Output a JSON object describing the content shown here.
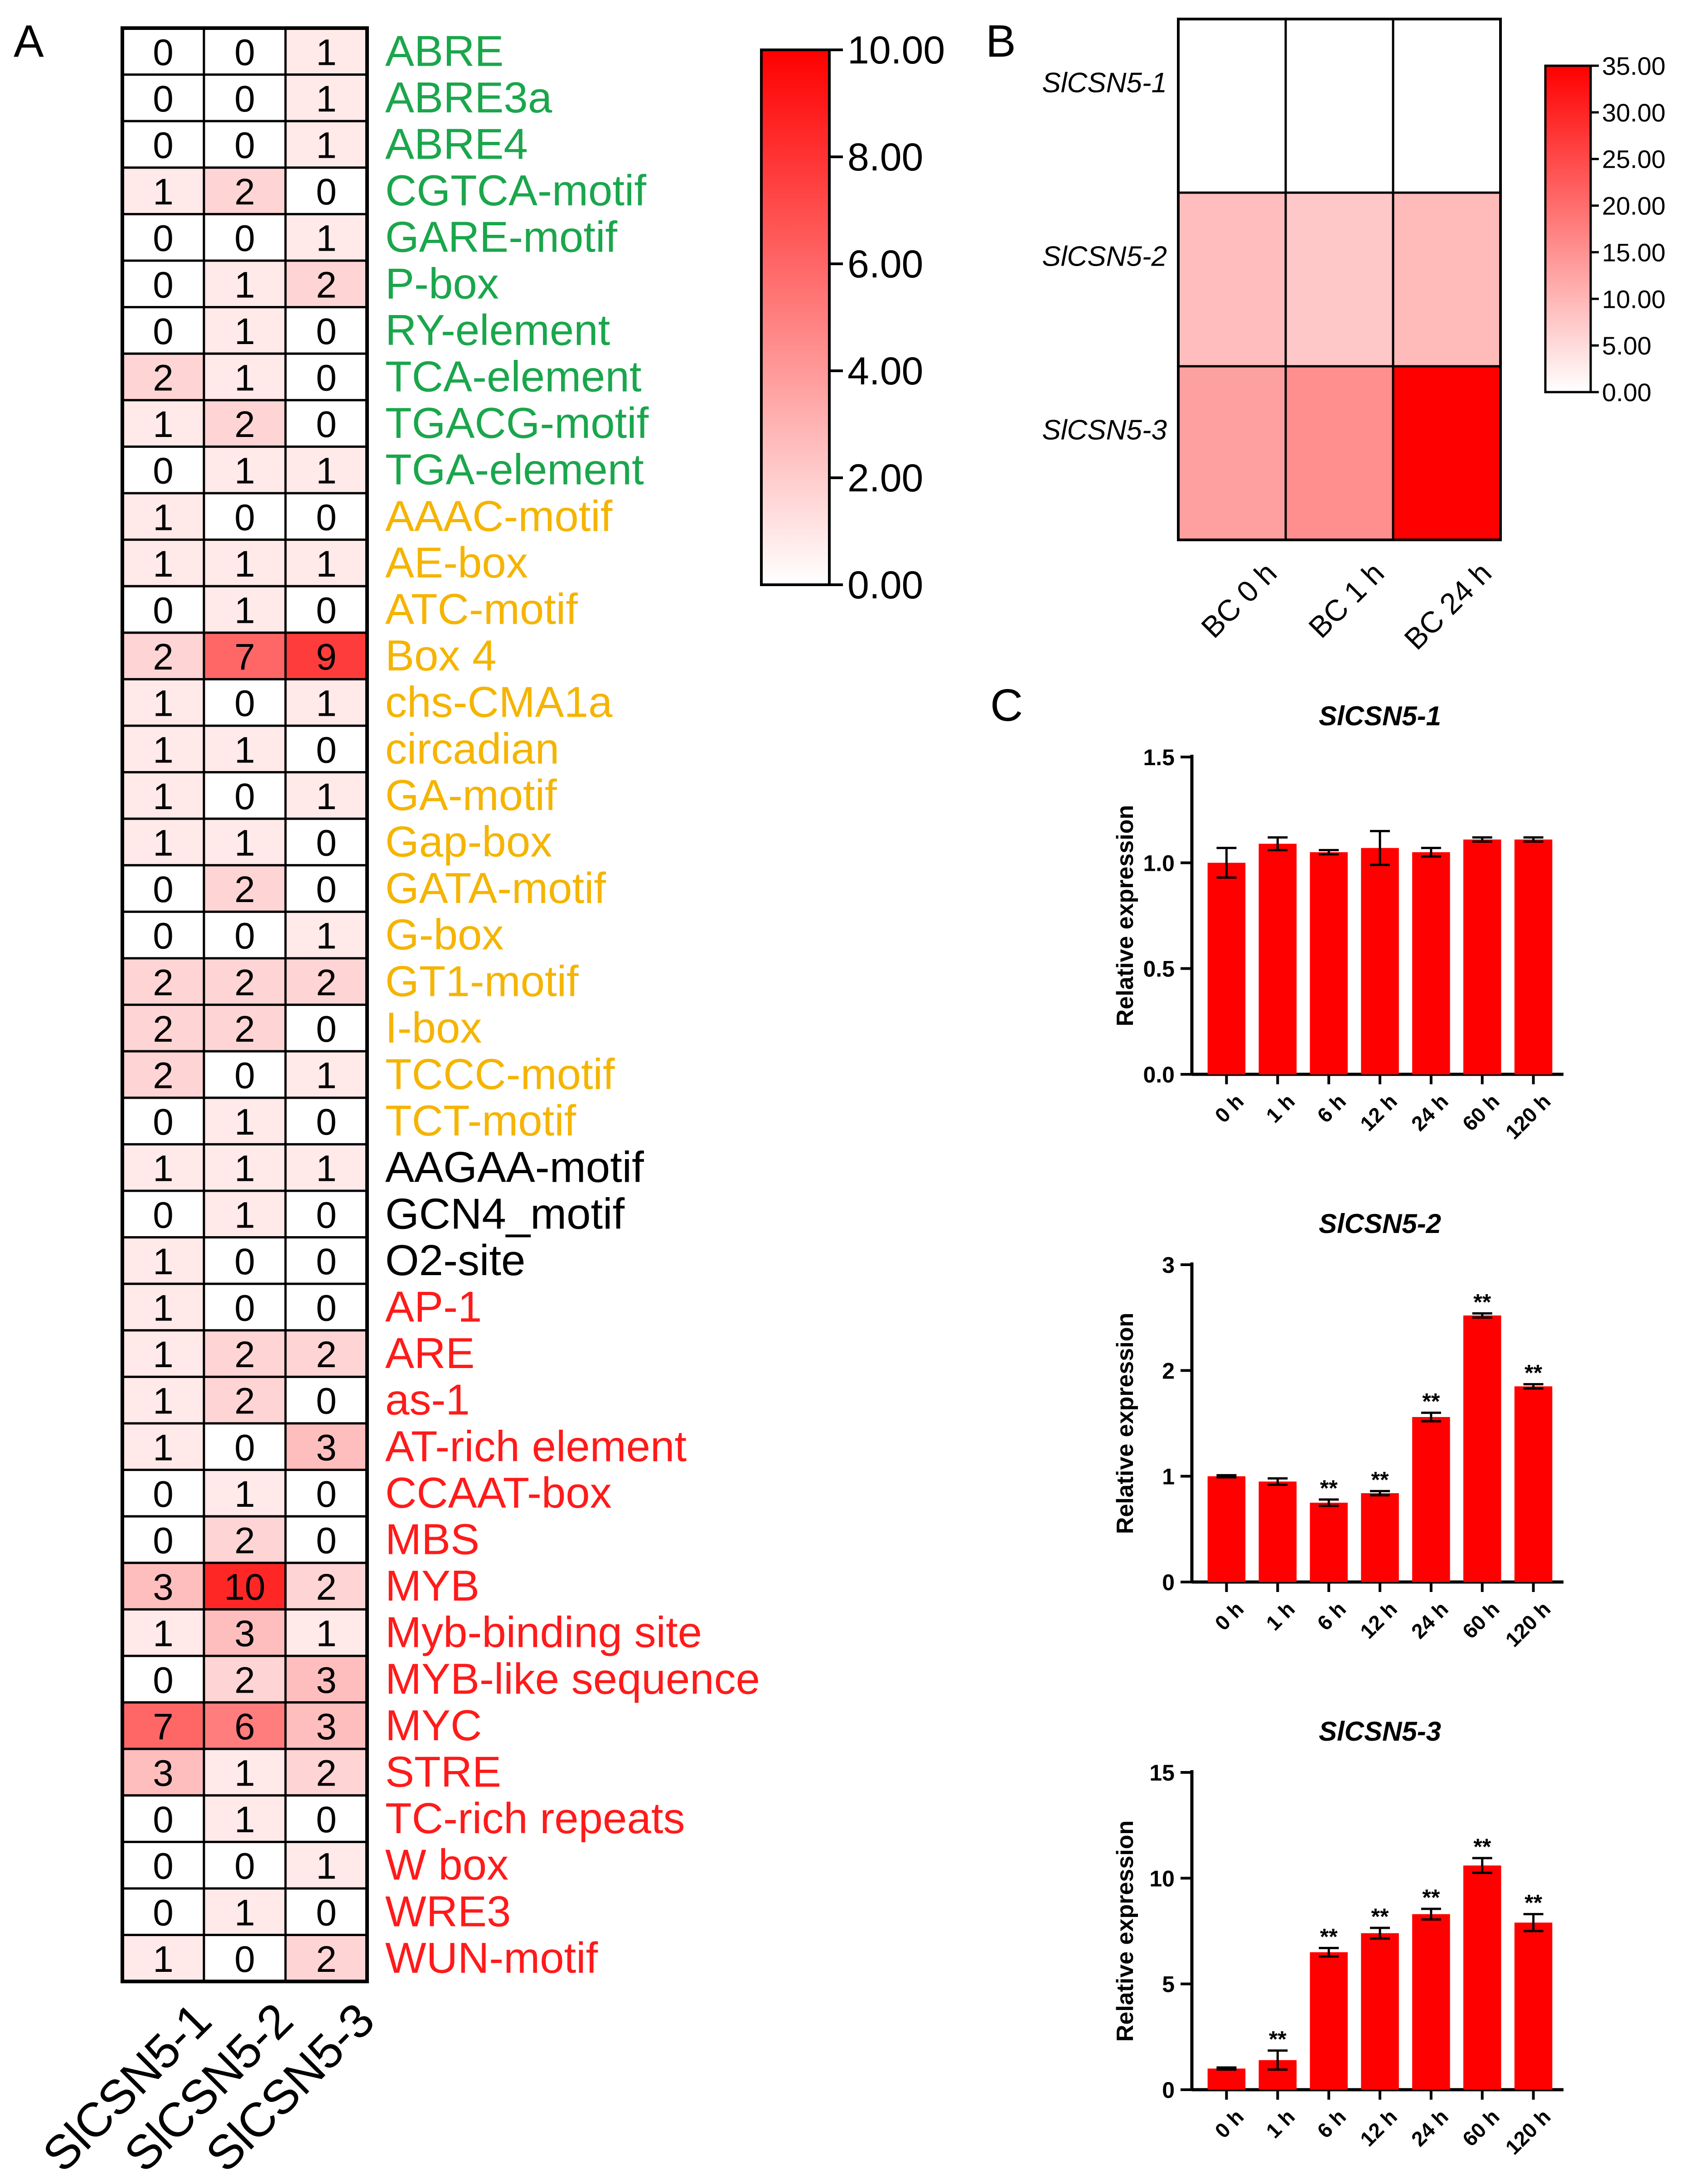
{
  "panels": {
    "a": "A",
    "b": "B",
    "c": "C"
  },
  "chart_data": [
    {
      "type": "heatmap",
      "panel": "A",
      "columns": [
        "SlCSN5-1",
        "SlCSN5-2",
        "SlCSN5-3"
      ],
      "rows": [
        {
          "label": "ABRE",
          "group": "hormone",
          "values": [
            0,
            0,
            1
          ]
        },
        {
          "label": "ABRE3a",
          "group": "hormone",
          "values": [
            0,
            0,
            1
          ]
        },
        {
          "label": "ABRE4",
          "group": "hormone",
          "values": [
            0,
            0,
            1
          ]
        },
        {
          "label": "CGTCA-motif",
          "group": "hormone",
          "values": [
            1,
            2,
            0
          ]
        },
        {
          "label": "GARE-motif",
          "group": "hormone",
          "values": [
            0,
            0,
            1
          ]
        },
        {
          "label": "P-box",
          "group": "hormone",
          "values": [
            0,
            1,
            2
          ]
        },
        {
          "label": "RY-element",
          "group": "hormone",
          "values": [
            0,
            1,
            0
          ]
        },
        {
          "label": "TCA-element",
          "group": "hormone",
          "values": [
            2,
            1,
            0
          ]
        },
        {
          "label": "TGACG-motif",
          "group": "hormone",
          "values": [
            1,
            2,
            0
          ]
        },
        {
          "label": "TGA-element",
          "group": "hormone",
          "values": [
            0,
            1,
            1
          ]
        },
        {
          "label": "AAAC-motif",
          "group": "light",
          "values": [
            1,
            0,
            0
          ]
        },
        {
          "label": "AE-box",
          "group": "light",
          "values": [
            1,
            1,
            1
          ]
        },
        {
          "label": "ATC-motif",
          "group": "light",
          "values": [
            0,
            1,
            0
          ]
        },
        {
          "label": "Box 4",
          "group": "light",
          "values": [
            2,
            7,
            9
          ]
        },
        {
          "label": "chs-CMA1a",
          "group": "light",
          "values": [
            1,
            0,
            1
          ]
        },
        {
          "label": "circadian",
          "group": "light",
          "values": [
            1,
            1,
            0
          ]
        },
        {
          "label": "GA-motif",
          "group": "light",
          "values": [
            1,
            0,
            1
          ]
        },
        {
          "label": "Gap-box",
          "group": "light",
          "values": [
            1,
            1,
            0
          ]
        },
        {
          "label": "GATA-motif",
          "group": "light",
          "values": [
            0,
            2,
            0
          ]
        },
        {
          "label": "G-box",
          "group": "light",
          "values": [
            0,
            0,
            1
          ]
        },
        {
          "label": "GT1-motif",
          "group": "light",
          "values": [
            2,
            2,
            2
          ]
        },
        {
          "label": "I-box",
          "group": "light",
          "values": [
            2,
            2,
            0
          ]
        },
        {
          "label": "TCCC-motif",
          "group": "light",
          "values": [
            2,
            0,
            1
          ]
        },
        {
          "label": "TCT-motif",
          "group": "light",
          "values": [
            0,
            1,
            0
          ]
        },
        {
          "label": "AAGAA-motif",
          "group": "other",
          "values": [
            1,
            1,
            1
          ]
        },
        {
          "label": "GCN4_motif",
          "group": "other",
          "values": [
            0,
            1,
            0
          ]
        },
        {
          "label": "O2-site",
          "group": "other",
          "values": [
            1,
            0,
            0
          ]
        },
        {
          "label": "AP-1",
          "group": "stress",
          "values": [
            1,
            0,
            0
          ]
        },
        {
          "label": "ARE",
          "group": "stress",
          "values": [
            1,
            2,
            2
          ]
        },
        {
          "label": "as-1",
          "group": "stress",
          "values": [
            1,
            2,
            0
          ]
        },
        {
          "label": "AT-rich element",
          "group": "stress",
          "values": [
            1,
            0,
            3
          ]
        },
        {
          "label": "CCAAT-box",
          "group": "stress",
          "values": [
            0,
            1,
            0
          ]
        },
        {
          "label": "MBS",
          "group": "stress",
          "values": [
            0,
            2,
            0
          ]
        },
        {
          "label": "MYB",
          "group": "stress",
          "values": [
            3,
            10,
            2
          ]
        },
        {
          "label": "Myb-binding site",
          "group": "stress",
          "values": [
            1,
            3,
            1
          ]
        },
        {
          "label": "MYB-like sequence",
          "group": "stress",
          "values": [
            0,
            2,
            3
          ]
        },
        {
          "label": "MYC",
          "group": "stress",
          "values": [
            7,
            6,
            3
          ]
        },
        {
          "label": "STRE",
          "group": "stress",
          "values": [
            3,
            1,
            2
          ]
        },
        {
          "label": "TC-rich repeats",
          "group": "stress",
          "values": [
            0,
            1,
            0
          ]
        },
        {
          "label": "W box",
          "group": "stress",
          "values": [
            0,
            0,
            1
          ]
        },
        {
          "label": "WRE3",
          "group": "stress",
          "values": [
            0,
            1,
            0
          ]
        },
        {
          "label": "WUN-motif",
          "group": "stress",
          "values": [
            1,
            0,
            2
          ]
        }
      ],
      "group_colors": {
        "hormone": "#1aa64b",
        "light": "#f5b400",
        "other": "#000000",
        "stress": "#ff1a1a"
      },
      "colorbar": {
        "min": 0,
        "max": 10,
        "ticks": [
          "0.00",
          "2.00",
          "4.00",
          "6.00",
          "8.00",
          "10.00"
        ],
        "low_color": "#ffffff",
        "high_color": "#ff0000"
      }
    },
    {
      "type": "heatmap",
      "panel": "B",
      "columns": [
        "BC 0 h",
        "BC 1 h",
        "BC 24 h"
      ],
      "rows": [
        {
          "label": "SlCSN5-1",
          "values": [
            0,
            0,
            0
          ]
        },
        {
          "label": "SlCSN5-2",
          "values": [
            9,
            7.5,
            9.5
          ]
        },
        {
          "label": "SlCSN5-3",
          "values": [
            13,
            15.5,
            35
          ]
        }
      ],
      "colorbar": {
        "min": 0,
        "max": 35,
        "ticks": [
          "0.00",
          "5.00",
          "10.00",
          "15.00",
          "20.00",
          "25.00",
          "30.00",
          "35.00"
        ],
        "low_color": "#ffffff",
        "high_color": "#ff0000"
      }
    },
    {
      "type": "bar",
      "panel": "C",
      "title": "SlCSN5-1",
      "ylabel": "Relative expression",
      "categories": [
        "0 h",
        "1 h",
        "6 h",
        "12 h",
        "24 h",
        "60 h",
        "120 h"
      ],
      "values": [
        1.0,
        1.09,
        1.05,
        1.07,
        1.05,
        1.11,
        1.11
      ],
      "errors": [
        0.07,
        0.03,
        0.01,
        0.08,
        0.02,
        0.01,
        0.01
      ],
      "significance": [
        "",
        "",
        "",
        "",
        "",
        "",
        ""
      ],
      "ylim": [
        0,
        1.5
      ],
      "yticks": [
        "0.0",
        "0.5",
        "1.0",
        "1.5"
      ],
      "color": "#ff0000"
    },
    {
      "type": "bar",
      "panel": "C",
      "title": "SlCSN5-2",
      "ylabel": "Relative expression",
      "categories": [
        "0 h",
        "1 h",
        "6 h",
        "12 h",
        "24 h",
        "60 h",
        "120 h"
      ],
      "values": [
        1.0,
        0.95,
        0.75,
        0.84,
        1.56,
        2.52,
        1.85
      ],
      "errors": [
        0.01,
        0.03,
        0.03,
        0.02,
        0.04,
        0.02,
        0.02
      ],
      "significance": [
        "",
        "",
        "**",
        "**",
        "**",
        "**",
        "**"
      ],
      "ylim": [
        0,
        3
      ],
      "yticks": [
        "0",
        "1",
        "2",
        "3"
      ],
      "color": "#ff0000"
    },
    {
      "type": "bar",
      "panel": "C",
      "title": "SlCSN5-3",
      "ylabel": "Relative expression",
      "categories": [
        "0 h",
        "1 h",
        "6 h",
        "12 h",
        "24 h",
        "60 h",
        "120 h"
      ],
      "values": [
        1.0,
        1.4,
        6.5,
        7.4,
        8.3,
        10.6,
        7.9
      ],
      "errors": [
        0.05,
        0.45,
        0.2,
        0.25,
        0.25,
        0.35,
        0.4
      ],
      "significance": [
        "",
        "**",
        "**",
        "**",
        "**",
        "**",
        "**"
      ],
      "ylim": [
        0,
        15
      ],
      "yticks": [
        "0",
        "5",
        "10",
        "15"
      ],
      "color": "#ff0000"
    }
  ]
}
